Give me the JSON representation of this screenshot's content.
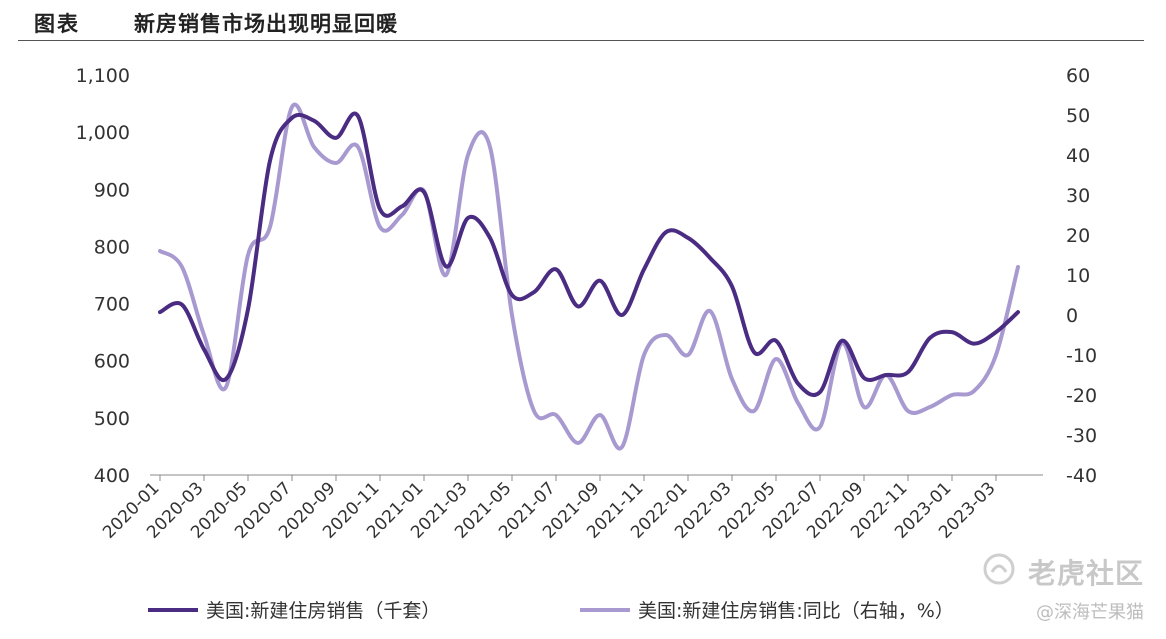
{
  "header": {
    "label": "图表",
    "title": "新房销售市场出现明显回暖"
  },
  "watermark": {
    "text": "老虎社区",
    "handle": "@深海芒果猫"
  },
  "chart_data": {
    "type": "line",
    "title": "新房销售市场出现明显回暖",
    "grid": false,
    "legend_position": "bottom",
    "x_tick_labels": [
      "2020-01",
      "2020-03",
      "2020-05",
      "2020-07",
      "2020-09",
      "2020-11",
      "2021-01",
      "2021-03",
      "2021-05",
      "2021-07",
      "2021-09",
      "2021-11",
      "2022-01",
      "2022-03",
      "2022-05",
      "2022-07",
      "2022-09",
      "2022-11",
      "2023-01",
      "2023-03"
    ],
    "x": [
      "2020-01",
      "2020-02",
      "2020-03",
      "2020-04",
      "2020-05",
      "2020-06",
      "2020-07",
      "2020-08",
      "2020-09",
      "2020-10",
      "2020-11",
      "2020-12",
      "2021-01",
      "2021-02",
      "2021-03",
      "2021-04",
      "2021-05",
      "2021-06",
      "2021-07",
      "2021-08",
      "2021-09",
      "2021-10",
      "2021-11",
      "2021-12",
      "2022-01",
      "2022-02",
      "2022-03",
      "2022-04",
      "2022-05",
      "2022-06",
      "2022-07",
      "2022-08",
      "2022-09",
      "2022-10",
      "2022-11",
      "2022-12",
      "2023-01",
      "2023-02",
      "2023-03",
      "2023-04"
    ],
    "y_left": {
      "ylim": [
        400,
        1100
      ],
      "ticks": [
        "400",
        "500",
        "600",
        "700",
        "800",
        "900",
        "1,000",
        "1,100"
      ]
    },
    "y_right": {
      "ylim": [
        -40,
        60
      ],
      "ticks": [
        "-40",
        "-30",
        "-20",
        "-10",
        "0",
        "10",
        "20",
        "30",
        "40",
        "50",
        "60"
      ]
    },
    "series": [
      {
        "name": "美国:新建住房销售（千套）",
        "axis": "left",
        "color": "#4b2c83",
        "values": [
          685,
          698,
          620,
          568,
          690,
          950,
          1025,
          1020,
          990,
          1028,
          865,
          870,
          895,
          765,
          850,
          815,
          715,
          720,
          760,
          695,
          740,
          680,
          760,
          825,
          815,
          780,
          730,
          615,
          635,
          560,
          545,
          635,
          570,
          575,
          580,
          640,
          650,
          630,
          650,
          685
        ]
      },
      {
        "name": "美国:新建住房销售:同比（右轴，%）",
        "axis": "right",
        "color": "#a89ad0",
        "values": [
          16,
          12,
          -5,
          -18,
          15,
          22,
          52,
          42,
          38,
          42,
          22,
          25,
          31,
          10,
          40,
          42,
          0,
          -24,
          -25,
          -32,
          -25,
          -33,
          -10,
          -5,
          -10,
          1,
          -16,
          -24,
          -11,
          -22,
          -28,
          -7,
          -23,
          -15,
          -24,
          -23,
          -20,
          -19,
          -10,
          12
        ]
      }
    ]
  }
}
